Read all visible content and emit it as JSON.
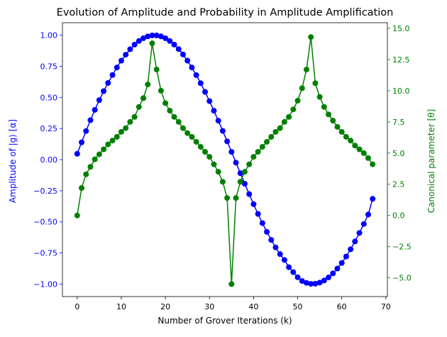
{
  "chart_data": {
    "type": "line",
    "title": "Evolution of Amplitude and Probability in Amplitude Amplification",
    "xlabel": "Number of Grover Iterations (k)",
    "ylabel_left": "Amplitude of |g⟩ [α]",
    "ylabel_right": "Canonical parameter [θ]",
    "xlim": [
      -3.35,
      70.35
    ],
    "ylim_left": [
      -1.1,
      1.1
    ],
    "ylim_right": [
      -6.5,
      15.45
    ],
    "xticks": [
      0,
      10,
      20,
      30,
      40,
      50,
      60,
      70
    ],
    "xtick_labels": [
      "0",
      "10",
      "20",
      "30",
      "40",
      "50",
      "60",
      "70"
    ],
    "yticks_left": [
      -1.0,
      -0.75,
      -0.5,
      -0.25,
      0.0,
      0.25,
      0.5,
      0.75,
      1.0
    ],
    "ytick_labels_left": [
      "−1.00",
      "−0.75",
      "−0.50",
      "−0.25",
      "0.00",
      "0.25",
      "0.50",
      "0.75",
      "1.00"
    ],
    "yticks_right": [
      -5.0,
      -2.5,
      0.0,
      2.5,
      5.0,
      7.5,
      10.0,
      12.5,
      15.0
    ],
    "ytick_labels_right": [
      "−5.0",
      "−2.5",
      "0.0",
      "2.5",
      "5.0",
      "7.5",
      "10.0",
      "12.5",
      "15.0"
    ],
    "grid": false,
    "colors": {
      "amplitude": "#0000ff",
      "theta": "#008000",
      "left_axis": "#0000ff",
      "right_axis": "#008000"
    },
    "x": [
      0,
      1,
      2,
      3,
      4,
      5,
      6,
      7,
      8,
      9,
      10,
      11,
      12,
      13,
      14,
      15,
      16,
      17,
      18,
      19,
      20,
      21,
      22,
      23,
      24,
      25,
      26,
      27,
      28,
      29,
      30,
      31,
      32,
      33,
      34,
      35,
      36,
      37,
      38,
      39,
      40,
      41,
      42,
      43,
      44,
      45,
      46,
      47,
      48,
      49,
      50,
      51,
      52,
      53,
      54,
      55,
      56,
      57,
      58,
      59,
      60,
      61,
      62,
      63,
      64,
      65,
      66,
      67
    ],
    "series": [
      {
        "axis": "left",
        "values": [
          0.047,
          0.139,
          0.23,
          0.317,
          0.4,
          0.478,
          0.55,
          0.616,
          0.68,
          0.74,
          0.795,
          0.843,
          0.887,
          0.924,
          0.953,
          0.975,
          0.99,
          0.998,
          0.998,
          0.99,
          0.975,
          0.953,
          0.924,
          0.888,
          0.845,
          0.795,
          0.74,
          0.679,
          0.614,
          0.544,
          0.47,
          0.393,
          0.313,
          0.231,
          0.147,
          0.062,
          -0.024,
          -0.109,
          -0.194,
          -0.277,
          -0.358,
          -0.436,
          -0.51,
          -0.58,
          -0.645,
          -0.705,
          -0.759,
          -0.806,
          -0.864,
          -0.904,
          -0.945,
          -0.975,
          -0.99,
          -0.998,
          -0.997,
          -0.988,
          -0.971,
          -0.946,
          -0.914,
          -0.875,
          -0.83,
          -0.778,
          -0.72,
          -0.657,
          -0.589,
          -0.517,
          -0.441,
          -0.315
        ]
      },
      {
        "axis": "right",
        "values": [
          0.0,
          2.2,
          3.3,
          3.9,
          4.5,
          4.9,
          5.3,
          5.7,
          6.0,
          6.3,
          6.7,
          7.0,
          7.5,
          7.9,
          8.7,
          9.4,
          10.5,
          13.8,
          11.7,
          10.0,
          9.0,
          8.4,
          7.9,
          7.5,
          7.0,
          6.6,
          6.3,
          5.9,
          5.5,
          5.1,
          4.7,
          4.1,
          3.5,
          2.7,
          1.4,
          -5.5,
          1.4,
          2.7,
          3.5,
          4.1,
          4.7,
          5.1,
          5.5,
          5.9,
          6.3,
          6.7,
          7.0,
          7.5,
          7.9,
          8.5,
          9.2,
          10.2,
          11.7,
          14.3,
          10.6,
          9.5,
          8.7,
          8.1,
          7.6,
          7.1,
          6.7,
          6.3,
          6.0,
          5.6,
          5.3,
          5.0,
          4.6,
          4.1
        ]
      }
    ]
  }
}
